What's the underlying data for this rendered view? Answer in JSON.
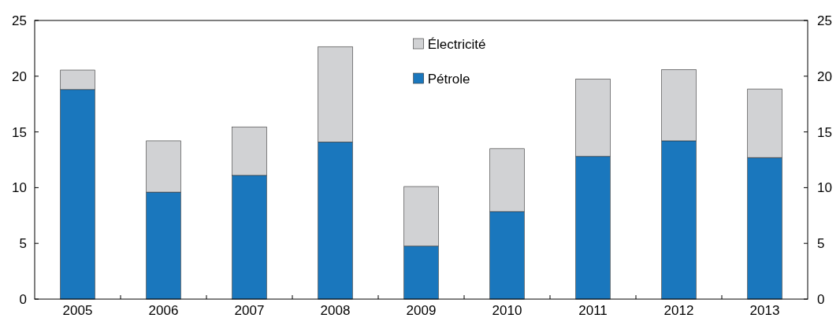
{
  "chart_data": {
    "type": "bar",
    "stacked": true,
    "categories": [
      "2005",
      "2006",
      "2007",
      "2008",
      "2009",
      "2010",
      "2011",
      "2012",
      "2013"
    ],
    "series": [
      {
        "name": "Pétrole",
        "color": "#1a77bd",
        "values": [
          18.8,
          9.6,
          11.1,
          14.1,
          4.75,
          7.85,
          12.8,
          14.2,
          12.7
        ]
      },
      {
        "name": "Électricité",
        "color": "#d1d2d4",
        "values": [
          1.75,
          4.6,
          4.35,
          8.55,
          5.35,
          5.65,
          6.95,
          6.4,
          6.15
        ]
      }
    ],
    "ylim": [
      0,
      25
    ],
    "yticks": [
      0,
      5,
      10,
      15,
      20,
      25
    ],
    "y2lim": [
      0,
      25
    ],
    "y2ticks": [
      0,
      5,
      10,
      15,
      20,
      25
    ],
    "grid": false,
    "legend": "top"
  }
}
